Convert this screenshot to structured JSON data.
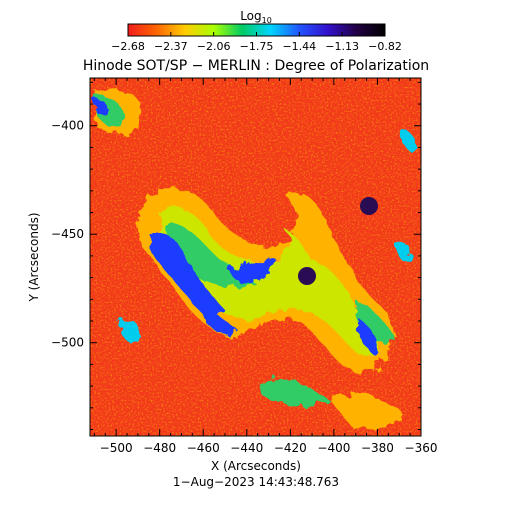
{
  "colorbar": {
    "label_base": "Log",
    "label_sub": "10",
    "tick_labels": [
      "−2.68",
      "−2.37",
      "−2.06",
      "−1.75",
      "−1.44",
      "−1.13",
      "−0.82"
    ],
    "stops": [
      "#f21c1c",
      "#ff6600",
      "#ffcc00",
      "#aaff00",
      "#00cc66",
      "#00d4ff",
      "#2255ff",
      "#3311cc",
      "#220044",
      "#000000"
    ]
  },
  "title": "Hinode SOT/SP − MERLIN : Degree of Polarization",
  "x_axis": {
    "label": "X (Arcseconds)",
    "ticks": [
      -500,
      -480,
      -460,
      -440,
      -420,
      -400,
      -380,
      -360
    ],
    "tick_labels": [
      "−500",
      "−480",
      "−460",
      "−440",
      "−420",
      "−400",
      "−380",
      "−360"
    ],
    "range": [
      -512,
      -360
    ]
  },
  "y_axis": {
    "label": "Y (Arcseconds)",
    "ticks": [
      -400,
      -450,
      -500
    ],
    "tick_labels": [
      "−400",
      "−450",
      "−500"
    ],
    "range": [
      -543,
      -378
    ]
  },
  "timestamp": "1−Aug−2023 14:43:48.763",
  "map_colors": {
    "background": "#f23a1a",
    "mid": "#ffb300",
    "low": "#cce600",
    "green": "#33cc66",
    "cyan": "#00ccee",
    "blue": "#1a3cff",
    "dark": "#2a0c55"
  }
}
